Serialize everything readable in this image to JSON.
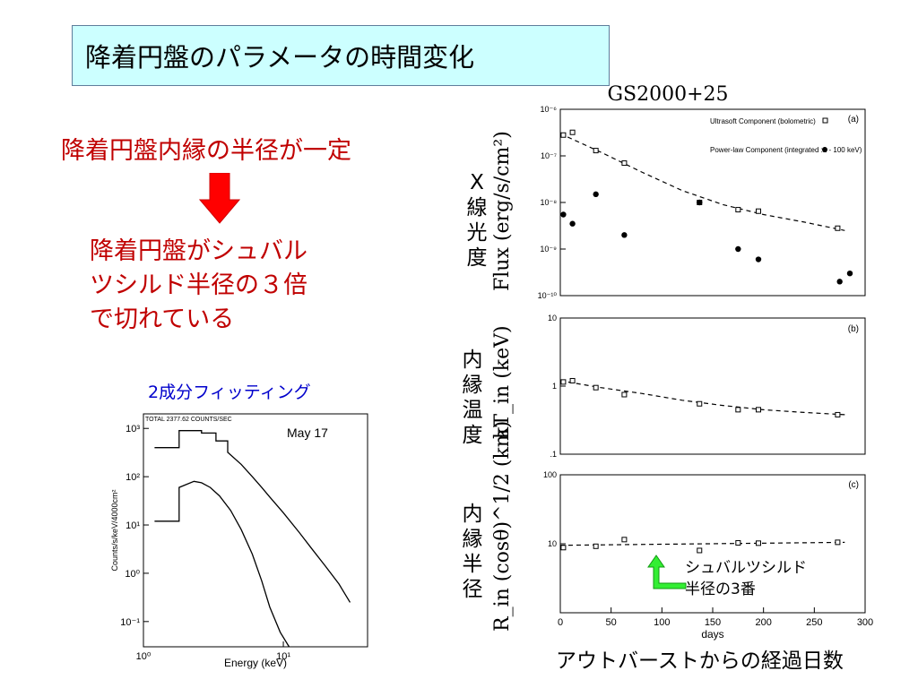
{
  "slide": {
    "title": "降着円盤のパラメータの時間変化",
    "statement1": "降着円盤内縁の半径が一定",
    "statement2_lines": [
      "降着円盤がシュバル",
      "ツシルド半径の３倍",
      "で切れている"
    ],
    "fit_title": "2成分フィッティング",
    "ylabel_flux_jp": [
      "X",
      "線",
      "光",
      "度"
    ],
    "ylabel_temp_jp": [
      "内",
      "縁",
      "温",
      "度"
    ],
    "ylabel_radius_jp": [
      "内",
      "縁",
      "半",
      "径"
    ],
    "xcaption": "アウトバーストからの経過日数",
    "annotation_lines": [
      "シュバルツシルド",
      "半径の3番"
    ]
  },
  "colors": {
    "title_bg": "#ccffff",
    "red_text": "#c00000",
    "blue_text": "#0000cc",
    "arrow_red": "#ff0000",
    "arrow_green": "#33ee33"
  },
  "chart_data": [
    {
      "type": "line",
      "panel": "spectrum",
      "header": "TOTAL   2377.62 COUNTS/SEC",
      "annotation": "May 17",
      "xlabel": "Energy (keV)",
      "ylabel": "Counts/s/keV/4000cm²",
      "x_log": true,
      "y_log": true,
      "xlim": [
        1,
        40
      ],
      "ylim": [
        0.03,
        2000
      ],
      "x_ticks": [
        "10⁰",
        "10¹"
      ],
      "y_ticks": [
        "10³",
        "10²",
        "10¹",
        "10⁰",
        "10⁻¹"
      ],
      "series": [
        {
          "x": [
            1.2,
            1.8,
            1.8,
            2.6,
            2.6,
            3.3,
            3.3,
            4.0,
            4.0,
            5.0,
            6.0,
            7.0,
            8.0,
            10.0,
            13.0,
            16.0,
            20.0,
            25.0,
            30.0
          ],
          "y": [
            400,
            400,
            900,
            900,
            800,
            800,
            550,
            550,
            320,
            180,
            100,
            60,
            38,
            18,
            7,
            3.2,
            1.4,
            0.6,
            0.25
          ]
        },
        {
          "x": [
            1.2,
            1.8,
            1.8,
            2.3,
            2.6,
            3.0,
            3.5,
            4.2,
            5.0,
            6.0,
            7.0,
            8.0,
            9.5,
            11.0
          ],
          "y": [
            12,
            12,
            60,
            80,
            75,
            60,
            40,
            20,
            8,
            2.5,
            0.7,
            0.2,
            0.06,
            0.03
          ]
        }
      ]
    },
    {
      "type": "scatter",
      "panel": "a",
      "title": "GS2000+25",
      "ylabel": "Flux (erg/s/cm²)",
      "y_log": true,
      "ylim": [
        1e-10,
        1e-06
      ],
      "xlim": [
        0,
        300
      ],
      "y_ticks": [
        "10⁻⁶",
        "10⁻⁷",
        "10⁻⁸",
        "10⁻⁹",
        "10⁻¹⁰"
      ],
      "label": "(a)",
      "legend": [
        "Ultrasoft Component (bolometric)",
        "Power-law Component (integrated :1 - 100 keV)"
      ],
      "series": [
        {
          "name": "Ultrasoft Component (bolometric)",
          "x": [
            3,
            12,
            35,
            63,
            137,
            175,
            195,
            273
          ],
          "y": [
            2.8e-07,
            3.2e-07,
            1.3e-07,
            7e-08,
            1e-08,
            7e-09,
            6.5e-09,
            2.8e-09
          ]
        },
        {
          "name": "Power-law Component (integrated :1 - 100 keV)",
          "x": [
            3,
            12,
            35,
            63,
            137,
            175,
            195,
            275,
            285
          ],
          "y": [
            5.5e-09,
            3.5e-09,
            1.5e-08,
            2e-09,
            1e-08,
            1e-09,
            6e-10,
            2e-10,
            3e-10
          ]
        }
      ],
      "fit": {
        "x": [
          0,
          40,
          80,
          120,
          160,
          200,
          240,
          280
        ],
        "y": [
          3e-07,
          1.2e-07,
          4.5e-08,
          1.8e-08,
          9e-09,
          5.5e-09,
          3.8e-09,
          2.5e-09
        ]
      }
    },
    {
      "type": "scatter",
      "panel": "b",
      "ylabel": "kT_in (keV)",
      "y_log": true,
      "ylim": [
        0.1,
        10
      ],
      "xlim": [
        0,
        300
      ],
      "y_ticks": [
        "10",
        "1",
        ".1"
      ],
      "label": "(b)",
      "series": [
        {
          "x": [
            3,
            12,
            35,
            63,
            137,
            175,
            195,
            273
          ],
          "y": [
            1.15,
            1.2,
            0.95,
            0.75,
            0.55,
            0.45,
            0.45,
            0.38
          ]
        }
      ],
      "fit": {
        "x": [
          0,
          40,
          80,
          120,
          160,
          200,
          240,
          280
        ],
        "y": [
          1.2,
          0.95,
          0.78,
          0.62,
          0.52,
          0.45,
          0.41,
          0.38
        ]
      }
    },
    {
      "type": "scatter",
      "panel": "c",
      "ylabel": "R_in (cosθ)^1/2 (km)",
      "xlabel": "days",
      "y_log": true,
      "ylim": [
        1,
        100
      ],
      "xlim": [
        0,
        300
      ],
      "y_ticks": [
        "100",
        "10"
      ],
      "x_ticks": [
        0,
        50,
        100,
        150,
        200,
        250,
        300
      ],
      "label": "(c)",
      "series": [
        {
          "x": [
            3,
            35,
            63,
            137,
            175,
            195,
            273
          ],
          "y": [
            8.8,
            9.2,
            11.5,
            8,
            10.3,
            10.2,
            10.5
          ]
        }
      ],
      "fit": {
        "x": [
          0,
          280
        ],
        "y": [
          9.5,
          10.5
        ]
      }
    }
  ]
}
